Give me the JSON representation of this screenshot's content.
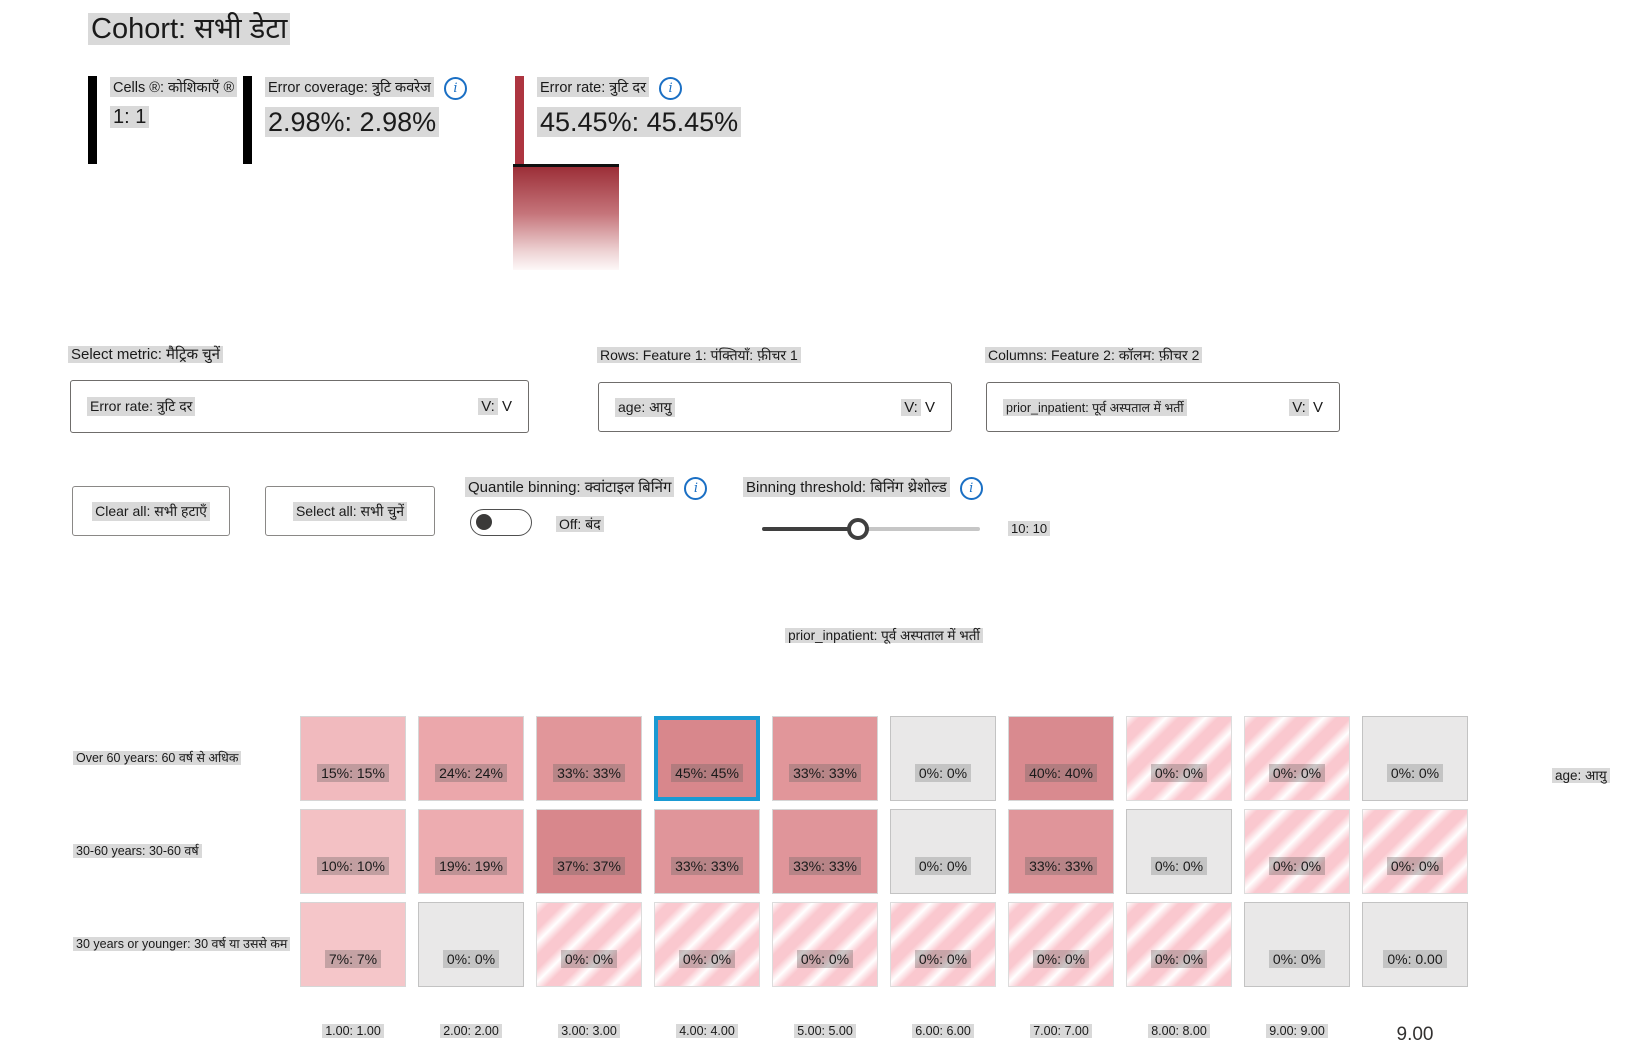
{
  "colors": {
    "accent_blue": "#1a6fc4",
    "selected_cell_border": "#1b9ad3",
    "error_rate_bar": "#ad3540",
    "highlight_background": "#d9d9d9",
    "heatmap_gradient_top": "#9c2f38",
    "heatmap_gradient_bottom": "#fdf8f8"
  },
  "header": {
    "title": "Cohort: सभी डेटा"
  },
  "metrics": [
    {
      "label": "Cells ®: कोशिकाएँ ®",
      "value": "1: 1"
    },
    {
      "label": "Error coverage: त्रुटि कवरेज",
      "value": "2.98%: 2.98%"
    },
    {
      "label": "Error rate: त्रुटि दर",
      "value": "45.45%: 45.45%"
    }
  ],
  "icons": {
    "info": "i"
  },
  "controls": {
    "select_metric_label": "Select metric: मैट्रिक चुनें",
    "select_metric_value": "Error rate: त्रुटि दर",
    "rows_feature_label": "Rows: Feature 1: पंक्तियाँ: फ़ीचर 1",
    "rows_feature_value": "age: आयु",
    "cols_feature_label": "Columns: Feature 2: कॉलम: फ़ीचर 2",
    "cols_feature_value": "prior_inpatient: पूर्व अस्पताल में भर्ती",
    "dropdown_chevron": "V:",
    "dropdown_chevron_plain": "V",
    "clear_all": "Clear all: सभी हटाएँ",
    "select_all": "Select all: सभी चुनें",
    "quantile_label": "Quantile binning: क्वांटाइल बिनिंग",
    "quantile_state": "Off: बंद",
    "threshold_label": "Binning threshold: बिनिंग थ्रेशोल्ड",
    "threshold_value": "10: 10"
  },
  "matrix": {
    "column_feature": "prior_inpatient: पूर्व अस्पताल में भर्ती",
    "row_feature": "age: आयु",
    "rows": [
      {
        "label": "Over 60 years: 60 वर्ष से अधिक",
        "cells": [
          {
            "text": "15%: 15%",
            "type": "fill",
            "color": "#f1babe"
          },
          {
            "text": "24%: 24%",
            "type": "fill",
            "color": "#eba7ab"
          },
          {
            "text": "33%: 33%",
            "type": "fill",
            "color": "#e1969a"
          },
          {
            "text": "45%: 45%",
            "type": "fill",
            "color": "#d8878c",
            "selected": true
          },
          {
            "text": "33%: 33%",
            "type": "fill",
            "color": "#e1969a"
          },
          {
            "text": "0%: 0%",
            "type": "empty"
          },
          {
            "text": "40%: 40%",
            "type": "fill",
            "color": "#d98a8f"
          },
          {
            "text": "0%: 0%",
            "type": "striped"
          },
          {
            "text": "0%: 0%",
            "type": "striped"
          },
          {
            "text": "0%: 0%",
            "type": "empty"
          }
        ]
      },
      {
        "label": "30-60 years: 30-60 वर्ष",
        "cells": [
          {
            "text": "10%: 10%",
            "type": "fill",
            "color": "#f3c1c4"
          },
          {
            "text": "19%: 19%",
            "type": "fill",
            "color": "#edacb0"
          },
          {
            "text": "37%: 37%",
            "type": "fill",
            "color": "#d8878c"
          },
          {
            "text": "33%: 33%",
            "type": "fill",
            "color": "#e0959a"
          },
          {
            "text": "33%: 33%",
            "type": "fill",
            "color": "#e0959a"
          },
          {
            "text": "0%: 0%",
            "type": "empty"
          },
          {
            "text": "33%: 33%",
            "type": "fill",
            "color": "#e0959a"
          },
          {
            "text": "0%: 0%",
            "type": "empty"
          },
          {
            "text": "0%: 0%",
            "type": "striped"
          },
          {
            "text": "0%: 0%",
            "type": "striped"
          }
        ]
      },
      {
        "label": "30 years or younger: 30 वर्ष या उससे कम",
        "cells": [
          {
            "text": "7%: 7%",
            "type": "fill",
            "color": "#f5c6c9"
          },
          {
            "text": "0%: 0%",
            "type": "empty"
          },
          {
            "text": "0%: 0%",
            "type": "striped"
          },
          {
            "text": "0%: 0%",
            "type": "striped"
          },
          {
            "text": "0%: 0%",
            "type": "striped"
          },
          {
            "text": "0%: 0%",
            "type": "striped"
          },
          {
            "text": "0%: 0%",
            "type": "striped"
          },
          {
            "text": "0%: 0%",
            "type": "striped"
          },
          {
            "text": "0%: 0%",
            "type": "empty"
          },
          {
            "text": "0%: 0.00",
            "type": "empty"
          }
        ]
      }
    ],
    "column_labels": [
      "1.00: 1.00",
      "2.00: 2.00",
      "3.00: 3.00",
      "4.00: 4.00",
      "5.00: 5.00",
      "6.00: 6.00",
      "7.00: 7.00",
      "8.00: 8.00",
      "9.00: 9.00",
      "9.00"
    ]
  },
  "chart_data": {
    "type": "heatmap",
    "xlabel": "prior_inpatient: पूर्व अस्पताल में भर्ती",
    "ylabel": "age: आयु",
    "x_categories": [
      "1.00",
      "2.00",
      "3.00",
      "4.00",
      "5.00",
      "6.00",
      "7.00",
      "8.00",
      "9.00",
      "9.00"
    ],
    "y_categories": [
      "Over 60 years: 60 वर्ष से अधिक",
      "30-60 years: 30-60 वर्ष",
      "30 years or younger: 30 वर्ष या उससे कम"
    ],
    "metric": "Error rate: त्रुटि दर",
    "values_error_rate_pct": [
      [
        15,
        24,
        33,
        45,
        33,
        0,
        40,
        null,
        null,
        0
      ],
      [
        10,
        19,
        37,
        33,
        33,
        0,
        33,
        0,
        null,
        null
      ],
      [
        7,
        0,
        null,
        null,
        null,
        null,
        null,
        null,
        0,
        0
      ]
    ],
    "null_means": "striped cell (no data)",
    "selected_cell": {
      "row": "Over 60 years",
      "column": "4.00",
      "value_pct": 45
    },
    "summary": {
      "cells_selected": "1: 1",
      "error_coverage": "2.98%: 2.98%",
      "error_rate": "45.45%: 45.45%"
    },
    "legend_position": "top"
  }
}
